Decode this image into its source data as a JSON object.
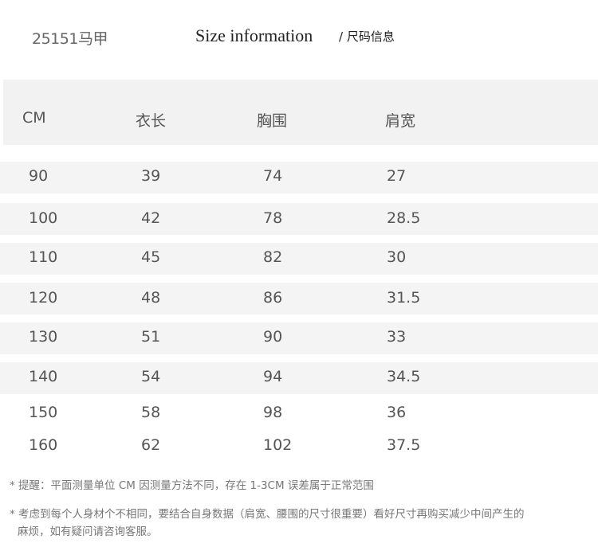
{
  "product_code": "25151马甲",
  "title": "Size information",
  "title_cn": "/ 尺码信息",
  "table": {
    "headers": [
      "CM",
      "衣长",
      "胸围",
      "肩宽"
    ],
    "rows": [
      [
        "90",
        "39",
        "74",
        "27"
      ],
      [
        "100",
        "42",
        "78",
        "28.5"
      ],
      [
        "110",
        "45",
        "82",
        "30"
      ],
      [
        "120",
        "48",
        "86",
        "31.5"
      ],
      [
        "130",
        "51",
        "90",
        "33"
      ],
      [
        "140",
        "54",
        "94",
        "34.5"
      ],
      [
        "150",
        "58",
        "98",
        "36"
      ],
      [
        "160",
        "62",
        "102",
        "37.5"
      ]
    ]
  },
  "notes": [
    "* 提醒：平面测量单位 CM 因测量方法不同，存在 1-3CM 误差属于正常范围",
    "* 考虑到每个人身材个不相同，要结合自身数据（肩宽、腰围的尺寸很重要）看好尺寸再购买减少中间产生的",
    "麻烦，如有疑问请咨询客服。"
  ],
  "colors": {
    "band": "#f4f4f4",
    "text": "#555555"
  }
}
